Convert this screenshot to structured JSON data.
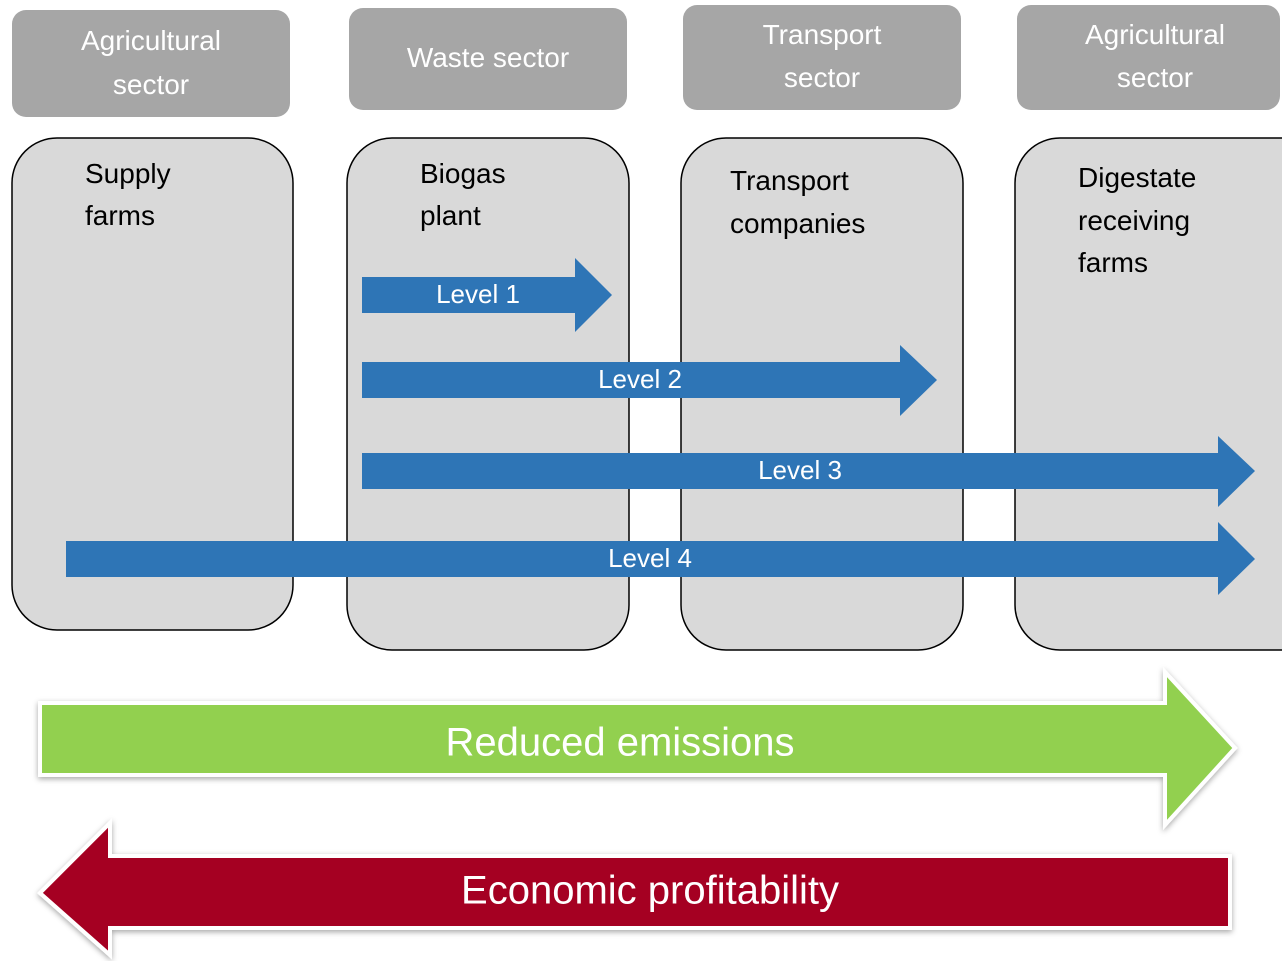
{
  "sectors": [
    {
      "lines": [
        "Agricultural",
        "sector"
      ]
    },
    {
      "lines": [
        "Waste sector"
      ]
    },
    {
      "lines": [
        "Transport",
        "sector"
      ]
    },
    {
      "lines": [
        "Agricultural",
        "sector"
      ]
    }
  ],
  "columns": [
    {
      "lines": [
        "Supply",
        "farms"
      ]
    },
    {
      "lines": [
        "Biogas",
        "plant"
      ]
    },
    {
      "lines": [
        "Transport",
        "companies"
      ]
    },
    {
      "lines": [
        "Digestate",
        "receiving",
        "farms"
      ]
    }
  ],
  "levels": [
    "Level 1",
    "Level 2",
    "Level 3",
    "Level 4"
  ],
  "bottom_arrows": {
    "right": "Reduced emissions",
    "left": "Economic profitability"
  }
}
